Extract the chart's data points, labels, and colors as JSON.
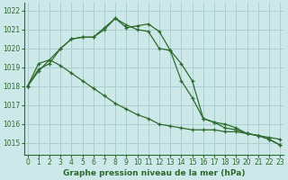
{
  "hours": [
    0,
    1,
    2,
    3,
    4,
    5,
    6,
    7,
    8,
    9,
    10,
    11,
    12,
    13,
    14,
    15,
    16,
    17,
    18,
    19,
    20,
    21,
    22,
    23
  ],
  "s1": [
    1018.0,
    1018.8,
    1019.4,
    1020.0,
    1020.5,
    1020.6,
    1020.6,
    1021.1,
    1021.6,
    1021.25,
    1021.0,
    1020.9,
    1020.0,
    1019.9,
    1019.2,
    1018.3,
    1016.3,
    1016.1,
    1015.8,
    1015.7,
    1015.5,
    1015.4,
    1015.2,
    1014.9
  ],
  "s2": [
    1018.0,
    1019.2,
    1019.4,
    1019.1,
    1018.7,
    1018.3,
    1017.9,
    1017.5,
    1017.1,
    1016.8,
    1016.5,
    1016.3,
    1016.0,
    1015.9,
    1015.8,
    1015.7,
    1015.7,
    1015.7,
    1015.6,
    1015.6,
    1015.5,
    1015.4,
    1015.3,
    1015.2
  ],
  "s3": [
    1018.0,
    1018.9,
    1019.2,
    1020.0,
    1020.5,
    1020.6,
    1020.6,
    1021.0,
    1021.6,
    1021.1,
    1021.2,
    1021.3,
    1020.9,
    1019.9,
    1018.3,
    1017.4,
    1016.3,
    1016.1,
    1016.0,
    1015.8,
    1015.5,
    1015.4,
    1015.2,
    1014.9
  ],
  "line_color": "#2d6a2d",
  "bg_color": "#cce8e8",
  "grid_color": "#aacece",
  "xlabel": "Graphe pression niveau de la mer (hPa)",
  "ylim_min": 1014.4,
  "ylim_max": 1022.4,
  "yticks": [
    1015,
    1016,
    1017,
    1018,
    1019,
    1020,
    1021,
    1022
  ],
  "xticks": [
    0,
    1,
    2,
    3,
    4,
    5,
    6,
    7,
    8,
    9,
    10,
    11,
    12,
    13,
    14,
    15,
    16,
    17,
    18,
    19,
    20,
    21,
    22,
    23
  ]
}
